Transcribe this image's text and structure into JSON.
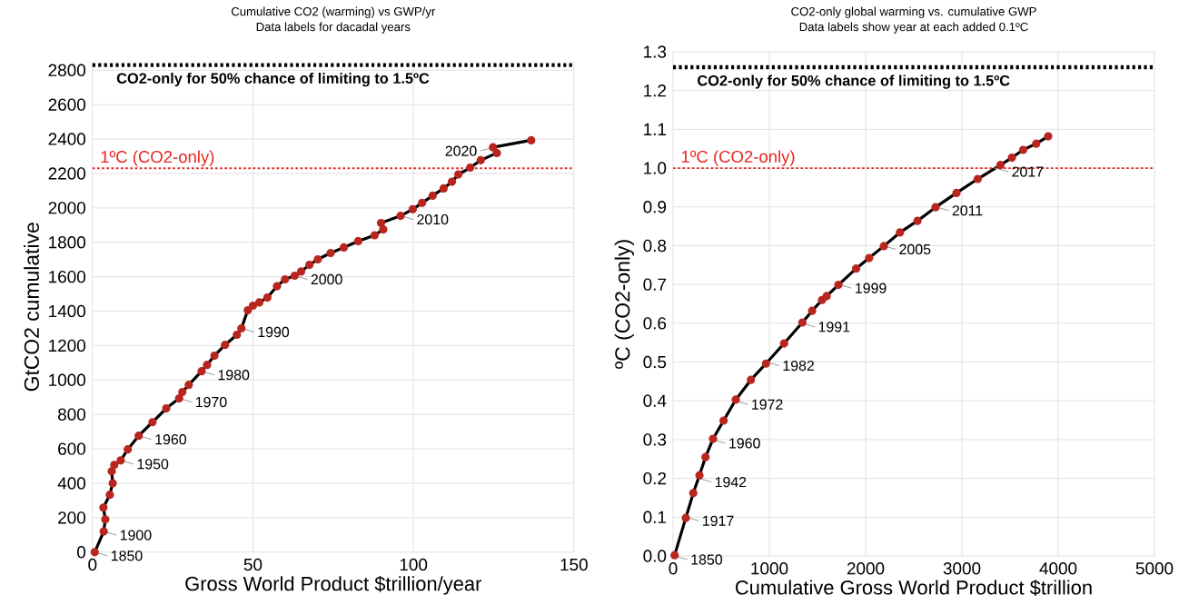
{
  "chart_data": [
    {
      "type": "line",
      "title": "Cumulative CO2 (warming) vs GWP/yr",
      "subtitle": "Data labels for dacadal years",
      "xlabel": "Gross World Product  $trillion/year",
      "ylabel": "GtCO2 cumulative",
      "xlim": [
        0,
        150
      ],
      "xticks": [
        0,
        50,
        100,
        150
      ],
      "ylim": [
        0,
        2850
      ],
      "yticks": [
        0,
        200,
        400,
        600,
        800,
        1000,
        1200,
        1400,
        1600,
        1800,
        2000,
        2200,
        2400,
        2600,
        2800
      ],
      "grid": true,
      "marker": "circle",
      "line_style": "solid",
      "series": [
        {
          "color": "#b8261f",
          "x": [
            0.7,
            3.5,
            4,
            3.4,
            5.4,
            6.3,
            6,
            6.8,
            8.8,
            11,
            14.4,
            18.7,
            23,
            27,
            28,
            30,
            34,
            35.7,
            38,
            41.3,
            45,
            46.4,
            48.4,
            50,
            52,
            54.5,
            57.5,
            60,
            63,
            65,
            67.6,
            70.2,
            74.2,
            78.3,
            82.8,
            87.9,
            90.6,
            89.9,
            96,
            99.8,
            102.7,
            106,
            109.4,
            112,
            114,
            117.7,
            121,
            126,
            124.8,
            136.7
          ],
          "values": [
            0,
            120,
            190,
            259,
            333,
            400,
            470,
            507,
            533,
            597,
            676,
            755,
            835,
            893,
            930,
            972,
            1051,
            1088,
            1141,
            1204,
            1263,
            1300,
            1405,
            1432,
            1451,
            1479,
            1545,
            1585,
            1606,
            1630,
            1669,
            1701,
            1738,
            1770,
            1807,
            1841,
            1875,
            1912,
            1954,
            1992,
            2029,
            2071,
            2113,
            2152,
            2194,
            2234,
            2277,
            2319,
            2352,
            2393
          ]
        }
      ],
      "ref_lines": [
        {
          "axis": "y",
          "value": 2830,
          "label": "CO2-only for 50% chance of limiting to 1.5ºC",
          "color": "#000000",
          "line_style": "dotted"
        },
        {
          "axis": "y",
          "value": 2230,
          "label": "1ºC (CO2-only)",
          "color": "#e8251f",
          "line_style": "dotted"
        }
      ],
      "annotations": [
        {
          "text": "1850",
          "x": 0.7,
          "y": 0
        },
        {
          "text": "1900",
          "x": 3.5,
          "y": 120
        },
        {
          "text": "1950",
          "x": 8.8,
          "y": 533
        },
        {
          "text": "1960",
          "x": 14.4,
          "y": 676
        },
        {
          "text": "1970",
          "x": 27,
          "y": 893
        },
        {
          "text": "1980",
          "x": 34,
          "y": 1051
        },
        {
          "text": "1990",
          "x": 46.4,
          "y": 1300
        },
        {
          "text": "2000",
          "x": 63,
          "y": 1606
        },
        {
          "text": "2010",
          "x": 96,
          "y": 1954
        },
        {
          "text": "2020",
          "x": 124.8,
          "y": 2352
        }
      ]
    },
    {
      "type": "line",
      "title": "CO2-only global warming vs. cumulative GWP",
      "subtitle": "Data labels show year at each added 0.1ºC",
      "xlabel": "Cumulative Gross World Product  $trillion",
      "ylabel": "ºC  (CO2-only)",
      "xlim": [
        0,
        5000
      ],
      "xticks": [
        0,
        1000,
        2000,
        3000,
        4000,
        5000
      ],
      "ylim": [
        0,
        1.3
      ],
      "yticks": [
        {
          "value": 0,
          "label": "0.0"
        },
        {
          "value": 0.1,
          "label": "0.1"
        },
        {
          "value": 0.2,
          "label": "0.2"
        },
        {
          "value": 0.3,
          "label": "0.3"
        },
        {
          "value": 0.4,
          "label": "0.4"
        },
        {
          "value": 0.5,
          "label": "0.5"
        },
        {
          "value": 0.6,
          "label": "0.6"
        },
        {
          "value": 0.7,
          "label": "0.7"
        },
        {
          "value": 0.8,
          "label": "0.8"
        },
        {
          "value": 0.9,
          "label": "0.9"
        },
        {
          "value": 1.0,
          "label": "1.0"
        },
        {
          "value": 1.1,
          "label": "1.1"
        },
        {
          "value": 1.2,
          "label": "1.2"
        },
        {
          "value": 1.3,
          "label": "1.3"
        }
      ],
      "grid": true,
      "marker": "circle",
      "line_style": "solid",
      "series": [
        {
          "color": "#b8261f",
          "x": [
            16,
            132,
            210,
            274,
            337,
            415,
            525,
            651,
            808,
            965,
            1153,
            1343,
            1444,
            1547,
            1595,
            1717,
            1901,
            2036,
            2189,
            2356,
            2538,
            2726,
            2943,
            3164,
            3400,
            3519,
            3636,
            3771,
            3896
          ],
          "values": [
            0.002,
            0.098,
            0.162,
            0.208,
            0.255,
            0.302,
            0.349,
            0.403,
            0.454,
            0.496,
            0.548,
            0.602,
            0.632,
            0.66,
            0.67,
            0.699,
            0.741,
            0.768,
            0.799,
            0.834,
            0.864,
            0.899,
            0.936,
            0.972,
            1.008,
            1.027,
            1.047,
            1.063,
            1.082
          ]
        }
      ],
      "ref_lines": [
        {
          "axis": "y",
          "value": 1.26,
          "label": "CO2-only for 50% chance of limiting to 1.5ºC",
          "color": "#000000",
          "line_style": "dotted"
        },
        {
          "axis": "y",
          "value": 1.0,
          "label": "1ºC (CO2-only)",
          "color": "#e8251f",
          "line_style": "dotted"
        }
      ],
      "annotations": [
        {
          "text": "1850",
          "x": 16,
          "y": 0
        },
        {
          "text": "1917",
          "x": 135,
          "y": 0.1
        },
        {
          "text": "1942",
          "x": 265,
          "y": 0.2
        },
        {
          "text": "1960",
          "x": 410,
          "y": 0.3
        },
        {
          "text": "1972",
          "x": 645,
          "y": 0.4
        },
        {
          "text": "1982",
          "x": 970,
          "y": 0.5
        },
        {
          "text": "1991",
          "x": 1340,
          "y": 0.6
        },
        {
          "text": "1999",
          "x": 1720,
          "y": 0.7
        },
        {
          "text": "2005",
          "x": 2180,
          "y": 0.8
        },
        {
          "text": "2011",
          "x": 2730,
          "y": 0.9
        },
        {
          "text": "2017",
          "x": 3350,
          "y": 1.0
        }
      ]
    }
  ]
}
